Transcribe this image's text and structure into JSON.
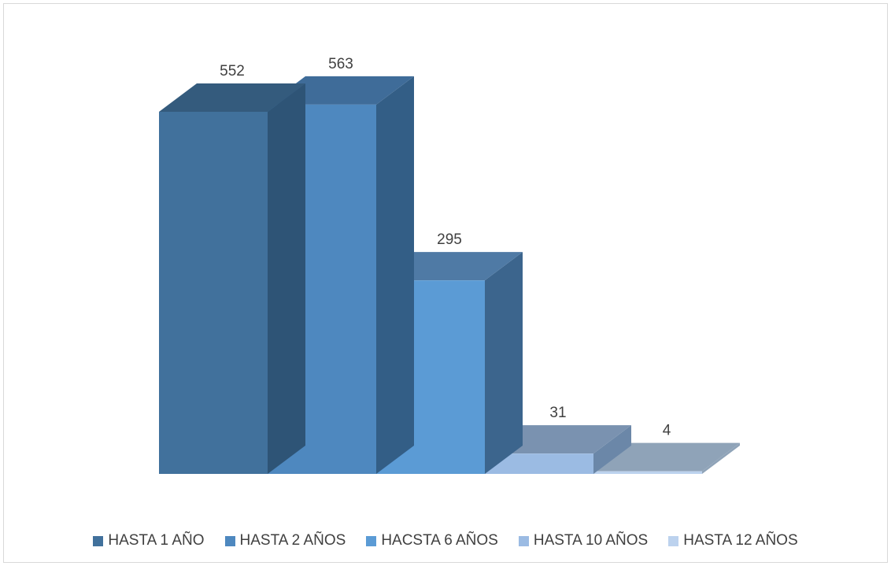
{
  "chart_data": {
    "type": "bar",
    "variant": "3d-clustered",
    "categories": [
      "HASTA 1 AÑO",
      "HASTA 2 AÑOS",
      "HACSTA 6 AÑOS",
      "HASTA 10 AÑOS",
      "HASTA 12 AÑOS"
    ],
    "values": [
      552,
      563,
      295,
      31,
      4
    ],
    "data_labels": [
      "552",
      "563",
      "295",
      "31",
      "4"
    ],
    "colors": {
      "front": [
        "#41719c",
        "#4e88bf",
        "#5b9bd5",
        "#9bbbe3",
        "#bcd2ee"
      ],
      "top": [
        "#345b7d",
        "#3f6c99",
        "#4f7aa5",
        "#7a92b0",
        "#8fa3b8"
      ],
      "side": [
        "#2e5476",
        "#335e86",
        "#3c658d",
        "#6b87a8",
        "#8fa3b8"
      ]
    },
    "legend_position": "bottom",
    "grid": false,
    "ylim": [
      0,
      563
    ]
  }
}
